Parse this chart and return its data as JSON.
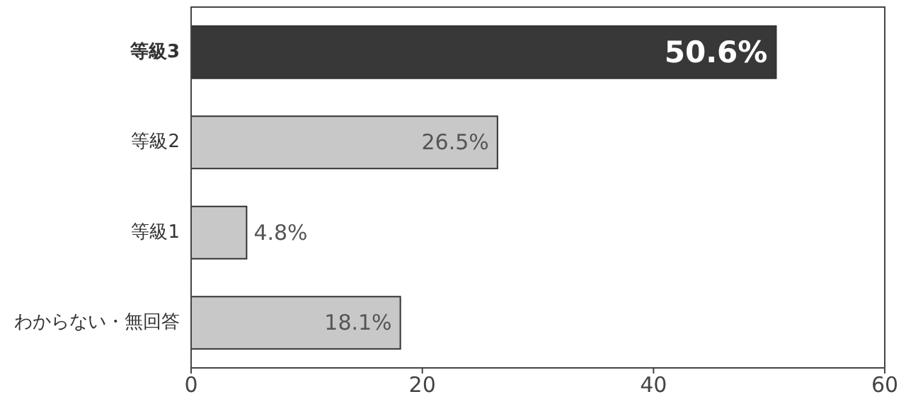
{
  "chart_data": {
    "type": "bar",
    "orientation": "horizontal",
    "categories": [
      "等級3",
      "等級2",
      "等級1",
      "わからない・無回答"
    ],
    "values": [
      50.6,
      26.5,
      4.8,
      18.1
    ],
    "colors": [
      "#383838",
      "#c8c8c8",
      "#c8c8c8",
      "#c8c8c8"
    ],
    "value_labels": [
      "50.6%",
      "26.5%",
      "4.8%",
      "18.1%"
    ],
    "xlim": [
      0,
      60
    ],
    "xticks": [
      0,
      20,
      40,
      60
    ],
    "grid": false
  }
}
